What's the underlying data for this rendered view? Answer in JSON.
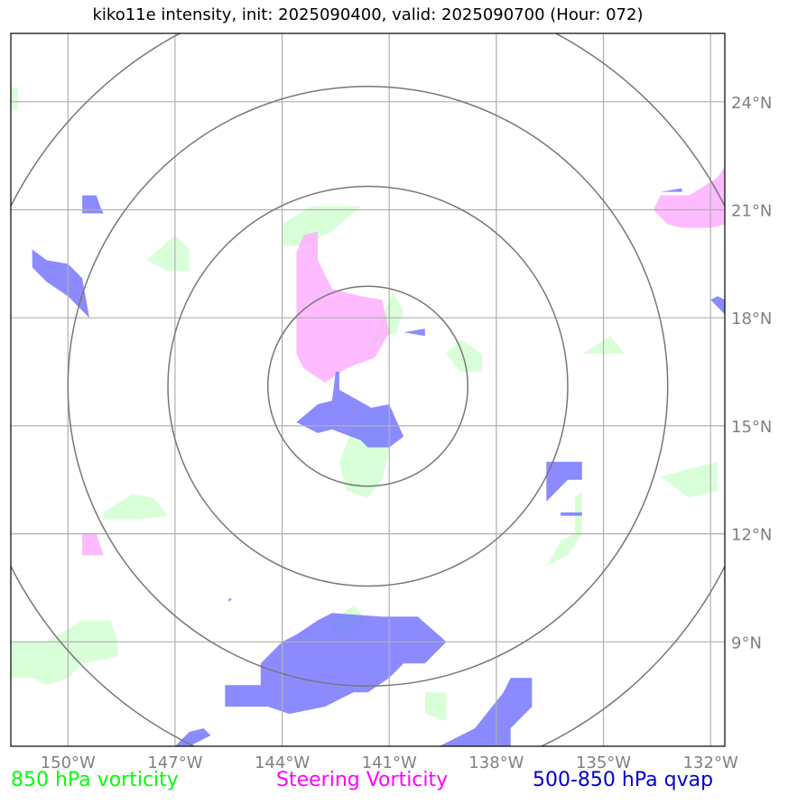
{
  "chart_data": {
    "type": "map",
    "title": "kiko11e intensity, init: 2025090400, valid: 2025090700 (Hour: 072)",
    "xlim": [
      -151.6,
      -131.6
    ],
    "ylim": [
      6.1,
      25.9
    ],
    "lon_ticks": [
      -150,
      -147,
      -144,
      -141,
      -138,
      -135,
      -132
    ],
    "lon_tick_labels": [
      "150°W",
      "147°W",
      "144°W",
      "141°W",
      "138°W",
      "135°W",
      "132°W"
    ],
    "lat_ticks": [
      9,
      12,
      15,
      18,
      21,
      24
    ],
    "lat_tick_labels": [
      "9°N",
      "12°N",
      "15°N",
      "18°N",
      "21°N",
      "24°N"
    ],
    "range_rings": {
      "center": [
        -141.6,
        16.1
      ],
      "radii_deg": [
        2.8,
        5.6,
        8.4,
        11.2
      ]
    },
    "legend": [
      {
        "label": "850 hPa vorticity",
        "color": "#00ff00"
      },
      {
        "label": "Steering Vorticity",
        "color": "#ff00ff"
      },
      {
        "label": "500-850 hPa qvap",
        "color": "#0000cc"
      }
    ],
    "layers": [
      {
        "name": "850 hPa vorticity",
        "fill": "#ccffcc",
        "polygons": [
          [
            [
              -151.6,
              23.8
            ],
            [
              -151.4,
              23.8
            ],
            [
              -151.4,
              24.4
            ],
            [
              -151.6,
              24.4
            ]
          ],
          [
            [
              -147.8,
              19.6
            ],
            [
              -147.0,
              20.3
            ],
            [
              -146.6,
              19.9
            ],
            [
              -146.6,
              19.3
            ],
            [
              -147.2,
              19.3
            ]
          ],
          [
            [
              -144.0,
              20.6
            ],
            [
              -143.2,
              21.1
            ],
            [
              -141.8,
              21.1
            ],
            [
              -142.6,
              20.4
            ],
            [
              -143.4,
              20.0
            ],
            [
              -144.0,
              20.0
            ]
          ],
          [
            [
              -143.0,
              18.4
            ],
            [
              -142.4,
              18.5
            ],
            [
              -142.4,
              18.4
            ]
          ],
          [
            [
              -141.6,
              17.2
            ],
            [
              -140.9,
              18.7
            ],
            [
              -140.6,
              18.2
            ],
            [
              -140.8,
              17.6
            ]
          ],
          [
            [
              -139.0,
              17.4
            ],
            [
              -138.4,
              17.0
            ],
            [
              -138.4,
              16.5
            ],
            [
              -139.0,
              16.5
            ],
            [
              -139.4,
              17.0
            ]
          ],
          [
            [
              -135.6,
              17.0
            ],
            [
              -134.8,
              17.5
            ],
            [
              -134.4,
              17.0
            ]
          ],
          [
            [
              -141.6,
              15.4
            ],
            [
              -141.0,
              15.5
            ],
            [
              -141.0,
              14.4
            ],
            [
              -141.2,
              13.5
            ],
            [
              -141.6,
              13.0
            ],
            [
              -142.2,
              13.2
            ],
            [
              -142.4,
              14.0
            ],
            [
              -142.0,
              15.0
            ]
          ],
          [
            [
              -149.0,
              12.6
            ],
            [
              -148.2,
              13.1
            ],
            [
              -147.6,
              13.0
            ],
            [
              -147.2,
              12.5
            ],
            [
              -148.0,
              12.4
            ],
            [
              -149.0,
              12.4
            ]
          ],
          [
            [
              -135.8,
              13.0
            ],
            [
              -135.6,
              13.2
            ],
            [
              -135.6,
              12.0
            ],
            [
              -136.0,
              11.4
            ],
            [
              -136.6,
              11.1
            ],
            [
              -136.2,
              11.8
            ],
            [
              -135.8,
              12.0
            ]
          ],
          [
            [
              -132.6,
              13.8
            ],
            [
              -131.8,
              14.0
            ],
            [
              -131.8,
              13.2
            ],
            [
              -132.6,
              13.0
            ],
            [
              -133.4,
              13.6
            ]
          ],
          [
            [
              -151.6,
              9.0
            ],
            [
              -150.6,
              9.0
            ],
            [
              -149.6,
              9.6
            ],
            [
              -148.8,
              9.6
            ],
            [
              -148.6,
              9.0
            ],
            [
              -148.6,
              8.6
            ],
            [
              -149.6,
              8.4
            ],
            [
              -150.0,
              8.0
            ],
            [
              -150.6,
              7.8
            ],
            [
              -151.0,
              8.0
            ],
            [
              -151.6,
              8.0
            ]
          ],
          [
            [
              -142.6,
              9.6
            ],
            [
              -142.0,
              10.0
            ],
            [
              -141.6,
              9.6
            ],
            [
              -142.0,
              9.2
            ],
            [
              -142.6,
              9.2
            ]
          ],
          [
            [
              -140.0,
              7.6
            ],
            [
              -139.4,
              7.6
            ],
            [
              -139.4,
              6.8
            ],
            [
              -140.0,
              7.0
            ]
          ]
        ]
      },
      {
        "name": "Steering Vorticity",
        "fill": "#ffaaff",
        "polygons": [
          [
            [
              -143.6,
              19.8
            ],
            [
              -143.4,
              20.3
            ],
            [
              -143.0,
              20.4
            ],
            [
              -143.0,
              19.6
            ],
            [
              -142.6,
              18.8
            ],
            [
              -141.8,
              18.6
            ],
            [
              -141.2,
              18.5
            ],
            [
              -141.0,
              17.6
            ],
            [
              -141.4,
              16.9
            ],
            [
              -142.2,
              16.6
            ],
            [
              -142.8,
              16.2
            ],
            [
              -143.4,
              16.6
            ],
            [
              -143.6,
              17.0
            ],
            [
              -143.6,
              18.0
            ]
          ],
          [
            [
              -133.4,
              21.4
            ],
            [
              -132.6,
              21.4
            ],
            [
              -131.8,
              21.9
            ],
            [
              -131.6,
              22.2
            ],
            [
              -131.6,
              20.6
            ],
            [
              -132.0,
              20.5
            ],
            [
              -132.8,
              20.5
            ],
            [
              -133.2,
              20.6
            ],
            [
              -133.6,
              21.0
            ]
          ],
          [
            [
              -149.6,
              12.0
            ],
            [
              -149.2,
              12.0
            ],
            [
              -149.0,
              11.4
            ],
            [
              -149.6,
              11.4
            ]
          ]
        ]
      },
      {
        "name": "500-850 hPa qvap",
        "fill": "#7777ff",
        "polygons": [
          [
            [
              -149.6,
              21.4
            ],
            [
              -149.2,
              21.4
            ],
            [
              -149.1,
              21.1
            ],
            [
              -149.0,
              20.9
            ],
            [
              -149.6,
              20.9
            ]
          ],
          [
            [
              -151.0,
              19.9
            ],
            [
              -150.6,
              19.6
            ],
            [
              -150.0,
              19.5
            ],
            [
              -149.6,
              19.1
            ],
            [
              -149.4,
              18.0
            ],
            [
              -150.0,
              18.6
            ],
            [
              -150.6,
              19.0
            ],
            [
              -151.0,
              19.4
            ]
          ],
          [
            [
              -142.5,
              16.5
            ],
            [
              -142.4,
              16.5
            ],
            [
              -142.4,
              16.0
            ],
            [
              -141.5,
              15.5
            ],
            [
              -141.0,
              15.6
            ],
            [
              -140.6,
              14.7
            ],
            [
              -141.0,
              14.4
            ],
            [
              -141.6,
              14.4
            ],
            [
              -141.8,
              14.6
            ],
            [
              -142.6,
              14.9
            ],
            [
              -143.0,
              14.8
            ],
            [
              -143.6,
              15.1
            ],
            [
              -143.0,
              15.6
            ],
            [
              -142.6,
              15.7
            ]
          ],
          [
            [
              -136.6,
              14.0
            ],
            [
              -135.6,
              14.0
            ],
            [
              -135.6,
              13.5
            ],
            [
              -136.0,
              13.5
            ],
            [
              -136.6,
              12.9
            ]
          ],
          [
            [
              -136.2,
              12.6
            ],
            [
              -135.6,
              12.6
            ],
            [
              -135.6,
              12.5
            ],
            [
              -136.2,
              12.5
            ]
          ],
          [
            [
              -133.4,
              21.5
            ],
            [
              -132.8,
              21.6
            ],
            [
              -132.8,
              21.5
            ]
          ],
          [
            [
              -131.8,
              18.6
            ],
            [
              -131.6,
              18.5
            ],
            [
              -131.6,
              18.1
            ],
            [
              -132.0,
              18.5
            ]
          ],
          [
            [
              -140.6,
              17.6
            ],
            [
              -140.0,
              17.7
            ],
            [
              -140.0,
              17.5
            ]
          ],
          [
            [
              -143.0,
              9.6
            ],
            [
              -142.6,
              9.8
            ],
            [
              -141.2,
              9.7
            ],
            [
              -140.2,
              9.7
            ],
            [
              -139.4,
              9.0
            ],
            [
              -140.0,
              8.4
            ],
            [
              -140.6,
              8.4
            ],
            [
              -141.0,
              8.0
            ],
            [
              -141.6,
              7.6
            ],
            [
              -142.0,
              7.6
            ],
            [
              -142.4,
              7.4
            ],
            [
              -142.8,
              7.2
            ],
            [
              -143.8,
              7.0
            ],
            [
              -144.4,
              7.2
            ],
            [
              -145.6,
              7.2
            ],
            [
              -145.6,
              7.8
            ],
            [
              -144.6,
              7.8
            ],
            [
              -144.6,
              8.4
            ],
            [
              -144.0,
              9.0
            ],
            [
              -143.6,
              9.2
            ]
          ],
          [
            [
              -137.6,
              8.0
            ],
            [
              -137.0,
              8.0
            ],
            [
              -137.0,
              7.2
            ],
            [
              -137.6,
              6.6
            ],
            [
              -137.6,
              6.1
            ],
            [
              -139.6,
              6.1
            ],
            [
              -138.6,
              6.6
            ],
            [
              -138.2,
              7.1
            ],
            [
              -137.8,
              7.6
            ]
          ],
          [
            [
              -146.6,
              6.5
            ],
            [
              -146.2,
              6.6
            ],
            [
              -146.0,
              6.4
            ],
            [
              -146.6,
              6.1
            ],
            [
              -147.0,
              6.1
            ]
          ],
          [
            [
              -145.5,
              10.2
            ],
            [
              -145.4,
              10.2
            ],
            [
              -145.5,
              10.1
            ]
          ]
        ]
      }
    ]
  }
}
